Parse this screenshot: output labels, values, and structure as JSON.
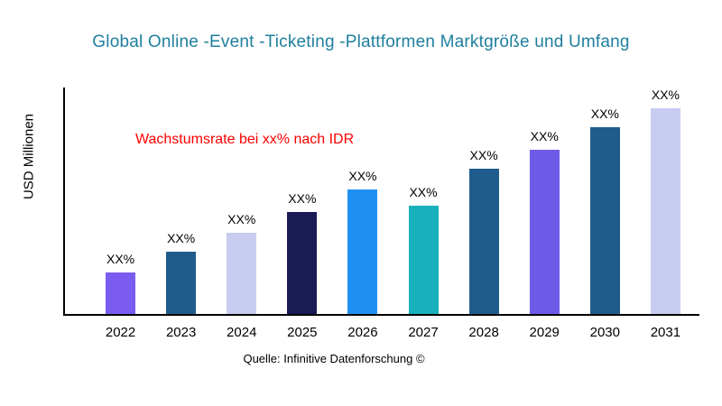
{
  "chart_data": {
    "type": "bar",
    "title": "Global Online -Event -Ticketing -Plattformen Marktgröße und Umfang",
    "title_color": "#1E7F9E",
    "ylabel": "USD Millionen",
    "xlabel": "",
    "categories": [
      "2022",
      "2023",
      "2024",
      "2025",
      "2026",
      "2027",
      "2028",
      "2029",
      "2030",
      "2031"
    ],
    "values": [
      20,
      30,
      39,
      49,
      60,
      52,
      70,
      79,
      90,
      100
    ],
    "bar_labels": [
      "XX%",
      "XX%",
      "XX%",
      "XX%",
      "XX%",
      "XX%",
      "XX%",
      "XX%",
      "XX%",
      "XX%"
    ],
    "bar_colors": [
      "#7A5CF0",
      "#1F5C8C",
      "#C8CCF0",
      "#1A1A55",
      "#2090F0",
      "#18B0BA",
      "#1F5C8C",
      "#6E5CE8",
      "#1F5C8C",
      "#C8CCF0"
    ],
    "ylim": [
      0,
      110
    ],
    "grid": false,
    "legend": false,
    "annotation": {
      "text": "Wachstumsrate bei xx% nach IDR",
      "color": "#FF0000"
    },
    "source": "Quelle: Infinitive Datenforschung ©"
  }
}
